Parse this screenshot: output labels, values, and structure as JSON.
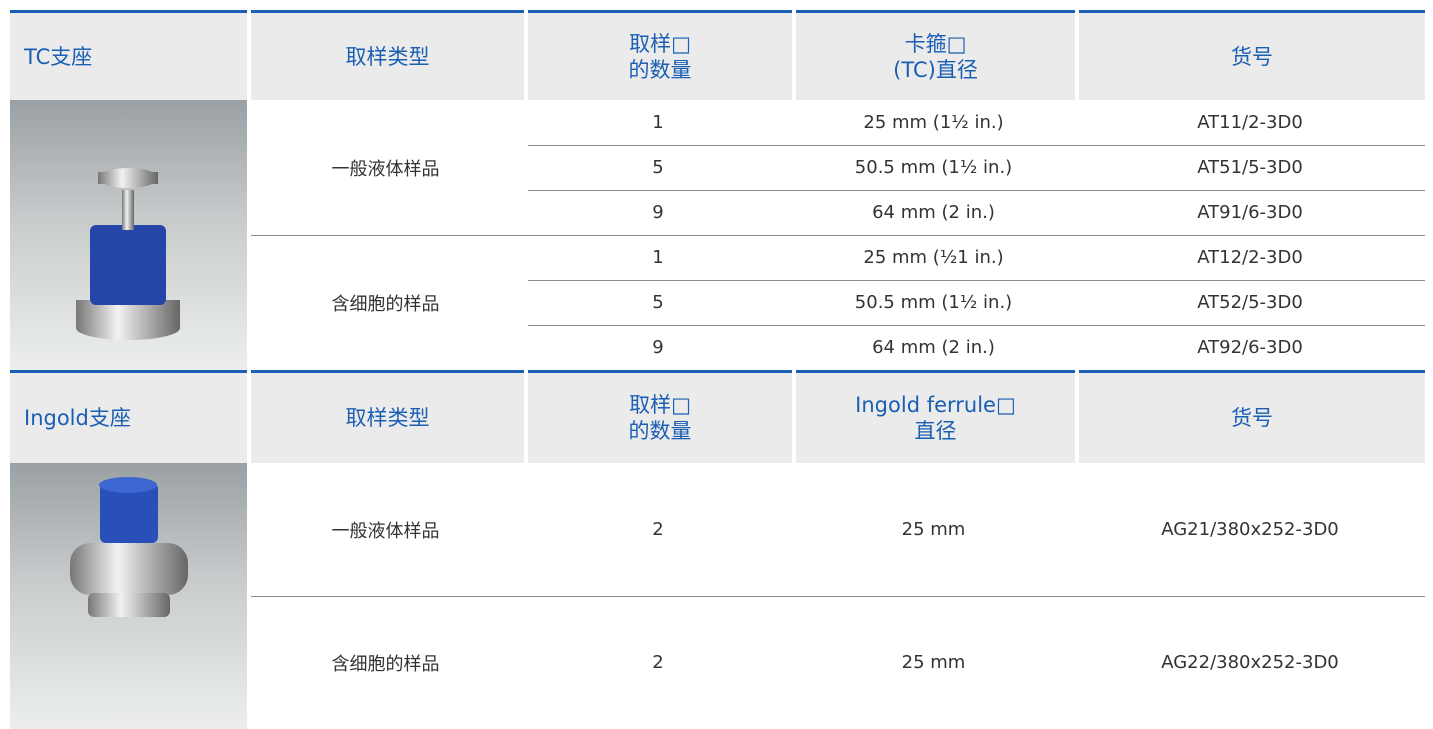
{
  "sections": [
    {
      "header": {
        "title": "TC支座",
        "sample_type": "取样类型",
        "ports": [
          "取样□",
          "的数量"
        ],
        "diameter": [
          "卡箍□",
          "(TC)直径"
        ],
        "part_no": "货号"
      },
      "groups": [
        {
          "sample_type": "一般液体样品",
          "rows": [
            [
              "1",
              "25 mm (1½ in.)",
              "AT11/2-3D0"
            ],
            [
              "5",
              "50.5 mm (1½ in.)",
              "AT51/5-3D0"
            ],
            [
              "9",
              "64 mm (2 in.)",
              "AT91/6-3D0"
            ]
          ]
        },
        {
          "sample_type": "含细胞的样品",
          "rows": [
            [
              "1",
              "25 mm (½1 in.)",
              "AT12/2-3D0"
            ],
            [
              "5",
              "50.5 mm (1½ in.)",
              "AT52/5-3D0"
            ],
            [
              "9",
              "64 mm (2 in.)",
              "AT92/6-3D0"
            ]
          ]
        }
      ]
    },
    {
      "header": {
        "title": "Ingold支座",
        "sample_type": "取样类型",
        "ports": [
          "取样□",
          "的数量"
        ],
        "diameter": [
          "Ingold ferrule□",
          "直径"
        ],
        "part_no": "货号"
      },
      "groups": [
        {
          "sample_type": "一般液体样品",
          "rows": [
            [
              "2",
              "25 mm",
              "AG21/380x252-3D0"
            ]
          ]
        },
        {
          "sample_type": "含细胞的样品",
          "rows": [
            [
              "2",
              "25 mm",
              "AG22/380x252-3D0"
            ]
          ]
        }
      ]
    }
  ]
}
